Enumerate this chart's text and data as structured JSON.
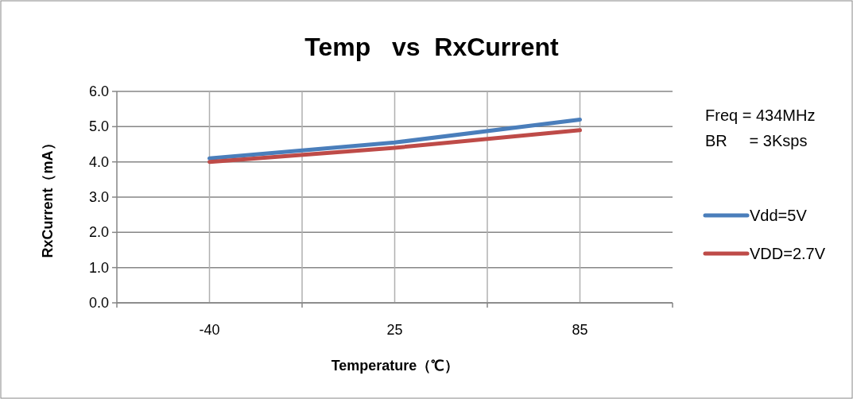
{
  "chart_data": {
    "type": "line",
    "title": "Temp   vs  RxCurrent",
    "xlabel": "Temperature（℃）",
    "ylabel": "RxCurrent（mA）",
    "categories": [
      "-40",
      "25",
      "85"
    ],
    "series": [
      {
        "name": "Vdd=5V",
        "color": "#4a7ebb",
        "values": [
          4.1,
          4.55,
          5.2
        ]
      },
      {
        "name": "VDD=2.7V",
        "color": "#be4b48",
        "values": [
          4.0,
          4.4,
          4.9
        ]
      }
    ],
    "ylim": [
      0,
      6
    ],
    "yticks": [
      {
        "value": 0,
        "label": "0.0"
      },
      {
        "value": 1,
        "label": "1.0"
      },
      {
        "value": 2,
        "label": "2.0"
      },
      {
        "value": 3,
        "label": "3.0"
      },
      {
        "value": 4,
        "label": "4.0"
      },
      {
        "value": 5,
        "label": "5.0"
      },
      {
        "value": 6,
        "label": "6.0"
      }
    ],
    "grid": true,
    "legend": "right",
    "marker": "none",
    "line_style": "solid",
    "annotations": [
      "Freq = 434MHz",
      "BR     = 3Ksps"
    ]
  }
}
